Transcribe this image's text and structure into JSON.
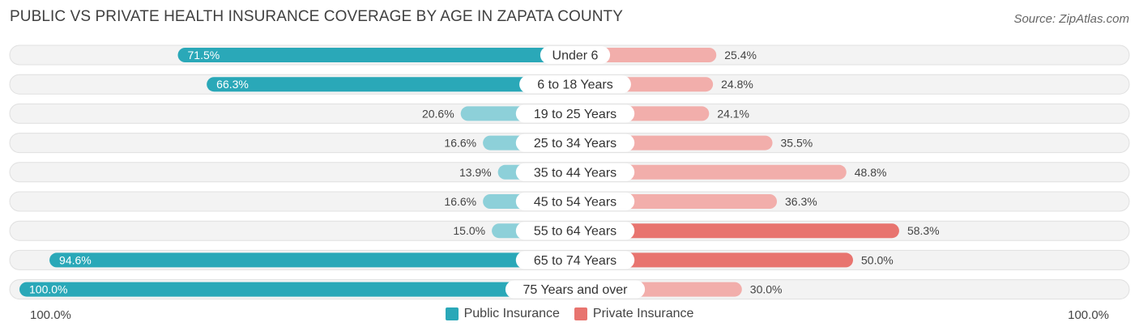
{
  "header": {
    "title": "PUBLIC VS PRIVATE HEALTH INSURANCE COVERAGE BY AGE IN ZAPATA COUNTY",
    "source": "Source: ZipAtlas.com"
  },
  "axis": {
    "left_label": "100.0%",
    "right_label": "100.0%"
  },
  "legend": [
    {
      "label": "Public Insurance",
      "color": "#2aa8b8"
    },
    {
      "label": "Private Insurance",
      "color": "#e8746f"
    }
  ],
  "chart_data": {
    "type": "bar",
    "orientation": "horizontal-diverging",
    "categories": [
      "Under 6",
      "6 to 18 Years",
      "19 to 25 Years",
      "25 to 34 Years",
      "35 to 44 Years",
      "45 to 54 Years",
      "55 to 64 Years",
      "65 to 74 Years",
      "75 Years and over"
    ],
    "series": [
      {
        "name": "Public Insurance",
        "values": [
          71.5,
          66.3,
          20.6,
          16.6,
          13.9,
          16.6,
          15.0,
          94.6,
          100.0
        ],
        "labels": [
          "71.5%",
          "66.3%",
          "20.6%",
          "16.6%",
          "13.9%",
          "16.6%",
          "15.0%",
          "94.6%",
          "100.0%"
        ]
      },
      {
        "name": "Private Insurance",
        "values": [
          25.4,
          24.8,
          24.1,
          35.5,
          48.8,
          36.3,
          58.3,
          50.0,
          30.0
        ],
        "labels": [
          "25.4%",
          "24.8%",
          "24.1%",
          "35.5%",
          "48.8%",
          "36.3%",
          "58.3%",
          "50.0%",
          "30.0%"
        ]
      }
    ],
    "xlim": [
      0,
      100
    ],
    "colors": {
      "public_strong": "#2aa8b8",
      "public_light": "#8dd0d9",
      "private_strong": "#e8746f",
      "private_light": "#f2aeab",
      "track": "#f1f1f1"
    }
  }
}
